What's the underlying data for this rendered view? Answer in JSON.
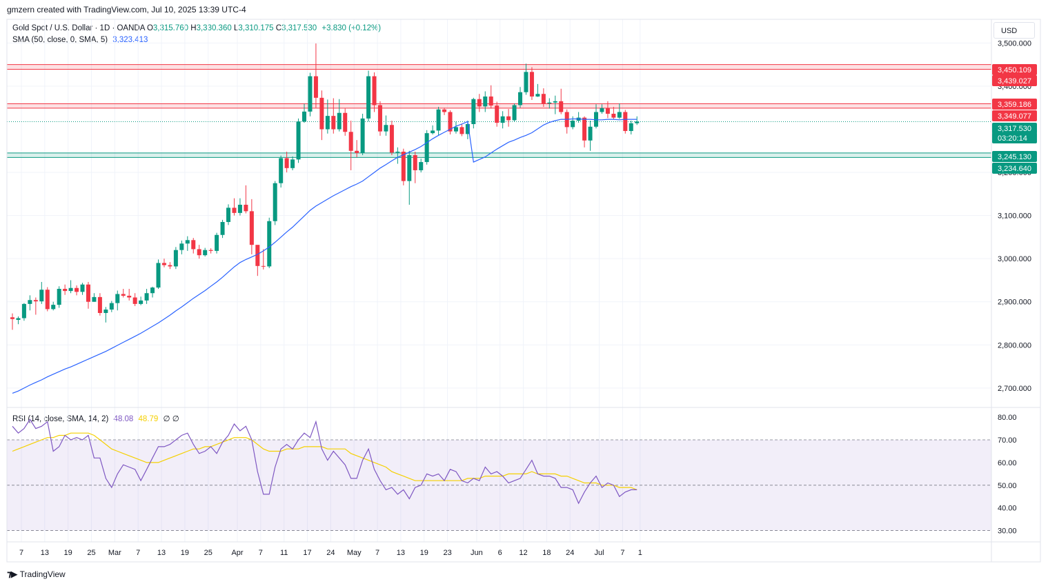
{
  "header": {
    "credit": "gmzern created with TradingView.com, Jul 10, 2025 13:39 UTC-4",
    "symbol": "Gold Spot / U.S. Dollar · 1D · OANDA",
    "open_label": "O",
    "open": "3,315.760",
    "high_label": "H",
    "high": "3,330.360",
    "low_label": "L",
    "low": "3,310.175",
    "close_label": "C",
    "close": "3,317.530",
    "change": "+3.830 (+0.12%)",
    "sma_label": "SMA (50, close, 0, SMA, 5)",
    "sma_value": "3,323.413",
    "rsi_label": "RSI (14, close, SMA, 14, 2)",
    "rsi_value": "48.08",
    "rsi_sma_value": "48.79",
    "rsi_extra": "∅ ∅",
    "currency": "USD"
  },
  "footer": {
    "logo_text": "TradingView"
  },
  "colors": {
    "up": "#089981",
    "down": "#f23645",
    "sma": "#2962ff",
    "rsi": "#7e57c2",
    "rsi_sma": "#f5d000"
  },
  "chart_data": {
    "type": "candlestick",
    "price_axis": {
      "range": [
        2655,
        3555
      ],
      "ticks": [
        {
          "v": 3500,
          "label": "3,500.000"
        },
        {
          "v": 3400,
          "label": "3,400.000"
        },
        {
          "v": 3200,
          "label": "3,200.000"
        },
        {
          "v": 3100,
          "label": "3,100.000"
        },
        {
          "v": 3000,
          "label": "3,000.000"
        },
        {
          "v": 2900,
          "label": "2,900.000"
        },
        {
          "v": 2800,
          "label": "2,800.000"
        },
        {
          "v": 2700,
          "label": "2,700.000"
        }
      ]
    },
    "levels": [
      {
        "v": 3450.109,
        "label": "3,450.109",
        "color": "#f23645"
      },
      {
        "v": 3439.027,
        "label": "3,439.027",
        "color": "#f23645"
      },
      {
        "v": 3359.186,
        "label": "3,359.186",
        "color": "#f23645"
      },
      {
        "v": 3349.077,
        "label": "3,349.077",
        "color": "#f23645"
      },
      {
        "v": 3245.13,
        "label": "3,245.130",
        "color": "#089981"
      },
      {
        "v": 3234.64,
        "label": "3,234.640",
        "color": "#089981"
      }
    ],
    "last_price": {
      "v": 3317.53,
      "label": "3,317.530",
      "countdown": "03:20:14"
    },
    "x_ticks": [
      {
        "i": 0,
        "label": "7"
      },
      {
        "i": 4,
        "label": "13"
      },
      {
        "i": 8,
        "label": "19"
      },
      {
        "i": 12,
        "label": "25"
      },
      {
        "i": 16,
        "label": "Mar"
      },
      {
        "i": 20,
        "label": "7"
      },
      {
        "i": 24,
        "label": "13"
      },
      {
        "i": 28,
        "label": "19"
      },
      {
        "i": 32,
        "label": "25"
      },
      {
        "i": 37,
        "label": "Apr"
      },
      {
        "i": 41,
        "label": "7"
      },
      {
        "i": 45,
        "label": "11"
      },
      {
        "i": 49,
        "label": "17"
      },
      {
        "i": 53,
        "label": "24"
      },
      {
        "i": 57,
        "label": "May"
      },
      {
        "i": 61,
        "label": "7"
      },
      {
        "i": 65,
        "label": "13"
      },
      {
        "i": 69,
        "label": "19"
      },
      {
        "i": 73,
        "label": "23"
      },
      {
        "i": 78,
        "label": "Jun"
      },
      {
        "i": 82,
        "label": "6"
      },
      {
        "i": 86,
        "label": "12"
      },
      {
        "i": 90,
        "label": "18"
      },
      {
        "i": 94,
        "label": "24"
      },
      {
        "i": 99,
        "label": "Jul"
      },
      {
        "i": 103,
        "label": "7"
      },
      {
        "i": 106,
        "label": "1"
      }
    ],
    "candles": [
      [
        2864,
        2860,
        2873,
        2835
      ],
      [
        2858,
        2862,
        2866,
        2848
      ],
      [
        2862,
        2895,
        2897,
        2856
      ],
      [
        2895,
        2904,
        2915,
        2880
      ],
      [
        2904,
        2901,
        2910,
        2870
      ],
      [
        2901,
        2928,
        2946,
        2895
      ],
      [
        2928,
        2883,
        2934,
        2878
      ],
      [
        2883,
        2893,
        2900,
        2880
      ],
      [
        2893,
        2930,
        2936,
        2886
      ],
      [
        2930,
        2925,
        2940,
        2916
      ],
      [
        2925,
        2932,
        2950,
        2920
      ],
      [
        2932,
        2923,
        2938,
        2915
      ],
      [
        2923,
        2940,
        2944,
        2916
      ],
      [
        2940,
        2900,
        2946,
        2884
      ],
      [
        2900,
        2911,
        2920,
        2900
      ],
      [
        2911,
        2874,
        2920,
        2868
      ],
      [
        2874,
        2882,
        2888,
        2852
      ],
      [
        2882,
        2897,
        2902,
        2876
      ],
      [
        2897,
        2918,
        2926,
        2880
      ],
      [
        2918,
        2914,
        2930,
        2910
      ],
      [
        2914,
        2910,
        2930,
        2903
      ],
      [
        2910,
        2895,
        2920,
        2890
      ],
      [
        2895,
        2903,
        2912,
        2892
      ],
      [
        2903,
        2920,
        2930,
        2895
      ],
      [
        2920,
        2933,
        2935,
        2910
      ],
      [
        2933,
        2990,
        2998,
        2930
      ],
      [
        2990,
        2985,
        3000,
        2980
      ],
      [
        2985,
        2982,
        2992,
        2976
      ],
      [
        2982,
        3020,
        3027,
        2976
      ],
      [
        3020,
        3035,
        3042,
        3010
      ],
      [
        3035,
        3043,
        3052,
        3018
      ],
      [
        3043,
        3022,
        3048,
        3012
      ],
      [
        3022,
        3008,
        3032,
        3000
      ],
      [
        3008,
        3020,
        3025,
        3005
      ],
      [
        3020,
        3018,
        3024,
        3012
      ],
      [
        3018,
        3055,
        3060,
        3012
      ],
      [
        3055,
        3085,
        3090,
        3048
      ],
      [
        3085,
        3118,
        3126,
        3078
      ],
      [
        3118,
        3106,
        3140,
        3100
      ],
      [
        3106,
        3125,
        3140,
        3100
      ],
      [
        3125,
        3110,
        3170,
        3105
      ],
      [
        3110,
        3032,
        3138,
        3010
      ],
      [
        3032,
        2983,
        3020,
        2960
      ],
      [
        2983,
        2982,
        3022,
        2975
      ],
      [
        2982,
        3087,
        3095,
        2978
      ],
      [
        3087,
        3175,
        3180,
        3078
      ],
      [
        3175,
        3233,
        3239,
        3165
      ],
      [
        3233,
        3210,
        3248,
        3200
      ],
      [
        3210,
        3230,
        3237,
        3205
      ],
      [
        3230,
        3318,
        3325,
        3222
      ],
      [
        3318,
        3341,
        3359,
        3315
      ],
      [
        3341,
        3423,
        3431,
        3330
      ],
      [
        3423,
        3373,
        3499,
        3350
      ],
      [
        3373,
        3300,
        3390,
        3275
      ],
      [
        3300,
        3331,
        3369,
        3290
      ],
      [
        3331,
        3300,
        3372,
        3290
      ],
      [
        3300,
        3338,
        3370,
        3295
      ],
      [
        3338,
        3294,
        3348,
        3285
      ],
      [
        3294,
        3250,
        3320,
        3205
      ],
      [
        3250,
        3245,
        3275,
        3235
      ],
      [
        3245,
        3325,
        3336,
        3240
      ],
      [
        3325,
        3423,
        3436,
        3318
      ],
      [
        3423,
        3356,
        3432,
        3340
      ],
      [
        3356,
        3295,
        3365,
        3285
      ],
      [
        3295,
        3310,
        3332,
        3285
      ],
      [
        3310,
        3246,
        3320,
        3240
      ],
      [
        3246,
        3248,
        3258,
        3220
      ],
      [
        3248,
        3180,
        3255,
        3170
      ],
      [
        3180,
        3240,
        3250,
        3125
      ],
      [
        3240,
        3205,
        3248,
        3175
      ],
      [
        3205,
        3224,
        3232,
        3200
      ],
      [
        3224,
        3291,
        3298,
        3218
      ],
      [
        3291,
        3297,
        3309,
        3288
      ],
      [
        3297,
        3346,
        3352,
        3285
      ],
      [
        3346,
        3340,
        3350,
        3333
      ],
      [
        3340,
        3295,
        3344,
        3288
      ],
      [
        3295,
        3305,
        3318,
        3290
      ],
      [
        3305,
        3289,
        3313,
        3284
      ],
      [
        3289,
        3312,
        3320,
        3277
      ],
      [
        3312,
        3370,
        3373,
        3302
      ],
      [
        3370,
        3353,
        3382,
        3340
      ],
      [
        3353,
        3376,
        3388,
        3340
      ],
      [
        3376,
        3355,
        3402,
        3348
      ],
      [
        3355,
        3315,
        3364,
        3306
      ],
      [
        3315,
        3330,
        3342,
        3302
      ],
      [
        3330,
        3321,
        3347,
        3306
      ],
      [
        3321,
        3356,
        3360,
        3318
      ],
      [
        3356,
        3386,
        3398,
        3350
      ],
      [
        3386,
        3433,
        3452,
        3380
      ],
      [
        3433,
        3376,
        3444,
        3368
      ],
      [
        3376,
        3382,
        3405,
        3375
      ],
      [
        3382,
        3360,
        3395,
        3352
      ],
      [
        3360,
        3362,
        3372,
        3348
      ],
      [
        3362,
        3365,
        3378,
        3335
      ],
      [
        3365,
        3340,
        3394,
        3335
      ],
      [
        3340,
        3305,
        3346,
        3290
      ],
      [
        3305,
        3320,
        3330,
        3300
      ],
      [
        3320,
        3327,
        3340,
        3315
      ],
      [
        3327,
        3274,
        3330,
        3258
      ],
      [
        3274,
        3306,
        3320,
        3250
      ],
      [
        3306,
        3340,
        3358,
        3302
      ],
      [
        3340,
        3349,
        3358,
        3336
      ],
      [
        3349,
        3336,
        3365,
        3326
      ],
      [
        3336,
        3327,
        3352,
        3323
      ],
      [
        3327,
        3340,
        3360,
        3324
      ],
      [
        3340,
        3296,
        3345,
        3290
      ],
      [
        3296,
        3314,
        3320,
        3288
      ],
      [
        3314,
        3318,
        3330,
        3310
      ]
    ],
    "sma": [
      2688,
      2693,
      2700,
      2707,
      2713,
      2719,
      2726,
      2732,
      2738,
      2744,
      2749,
      2755,
      2761,
      2767,
      2773,
      2779,
      2785,
      2792,
      2799,
      2806,
      2813,
      2820,
      2827,
      2835,
      2843,
      2851,
      2860,
      2869,
      2879,
      2888,
      2898,
      2908,
      2917,
      2926,
      2936,
      2946,
      2957,
      2969,
      2981,
      2991,
      2998,
      3004,
      3010,
      3018,
      3027,
      3038,
      3050,
      3062,
      3073,
      3086,
      3099,
      3112,
      3122,
      3130,
      3138,
      3146,
      3153,
      3160,
      3167,
      3173,
      3180,
      3190,
      3200,
      3210,
      3218,
      3227,
      3235,
      3241,
      3247,
      3253,
      3260,
      3269,
      3278,
      3286,
      3293,
      3300,
      3307,
      3312,
      3318,
      3224,
      3230,
      3236,
      3245,
      3254,
      3262,
      3270,
      3275,
      3281,
      3286,
      3292,
      3301,
      3310,
      3316,
      3320,
      3323,
      3323,
      3324,
      3324,
      3323,
      3323,
      3322,
      3322,
      3323,
      3323,
      3322,
      3323,
      3323,
      3323
    ],
    "rsi_axis": {
      "range": [
        25,
        84
      ],
      "ticks": [
        {
          "v": 80,
          "label": "80.00"
        },
        {
          "v": 70,
          "label": "70.00"
        },
        {
          "v": 60,
          "label": "60.00"
        },
        {
          "v": 50,
          "label": "50.00"
        },
        {
          "v": 40,
          "label": "40.00"
        },
        {
          "v": 30,
          "label": "30.00"
        }
      ],
      "bands": [
        70,
        50,
        30
      ]
    },
    "rsi": [
      76,
      73,
      75,
      79,
      75,
      76,
      78,
      65,
      67,
      72,
      70,
      71,
      70,
      72,
      62,
      62,
      53,
      49,
      55,
      59,
      58,
      57,
      52,
      57,
      62,
      67,
      67,
      68,
      70,
      72,
      73,
      68,
      64,
      65,
      67,
      64,
      69,
      72,
      77,
      74,
      76,
      70,
      56,
      46,
      46,
      58,
      66,
      68,
      66,
      70,
      73,
      71,
      78,
      66,
      61,
      65,
      62,
      59,
      53,
      53,
      61,
      66,
      57,
      52,
      48,
      49,
      46,
      48,
      44,
      49,
      50,
      55,
      54,
      55,
      52,
      57,
      56,
      52,
      51,
      53,
      52,
      58,
      55,
      56,
      54,
      51,
      52,
      53,
      57,
      61,
      55,
      54,
      54,
      53,
      49,
      49,
      48,
      42,
      47,
      51,
      54,
      49,
      51,
      50,
      45,
      47,
      48,
      48
    ],
    "rsi_sma": [
      65,
      66,
      67,
      68,
      69,
      70,
      71,
      71,
      72,
      72,
      73,
      73,
      73,
      73,
      72,
      70,
      68,
      66,
      65,
      64,
      63,
      62,
      61,
      60,
      60,
      60,
      61,
      62,
      63,
      64,
      65,
      66,
      66,
      67,
      67,
      68,
      69,
      70,
      71,
      71,
      71,
      70,
      68,
      66,
      65,
      65,
      65,
      66,
      66,
      66,
      67,
      67,
      67,
      67,
      66,
      66,
      66,
      66,
      64,
      63,
      62,
      61,
      60,
      59,
      58,
      56,
      55,
      54,
      53,
      52,
      52,
      52,
      52,
      52,
      52,
      52,
      52,
      52,
      53,
      53,
      53,
      54,
      54,
      54,
      54,
      55,
      55,
      55,
      55,
      56,
      55,
      55,
      55,
      55,
      54,
      54,
      53,
      52,
      51,
      51,
      51,
      50,
      50,
      50,
      49,
      49,
      49,
      48
    ]
  }
}
